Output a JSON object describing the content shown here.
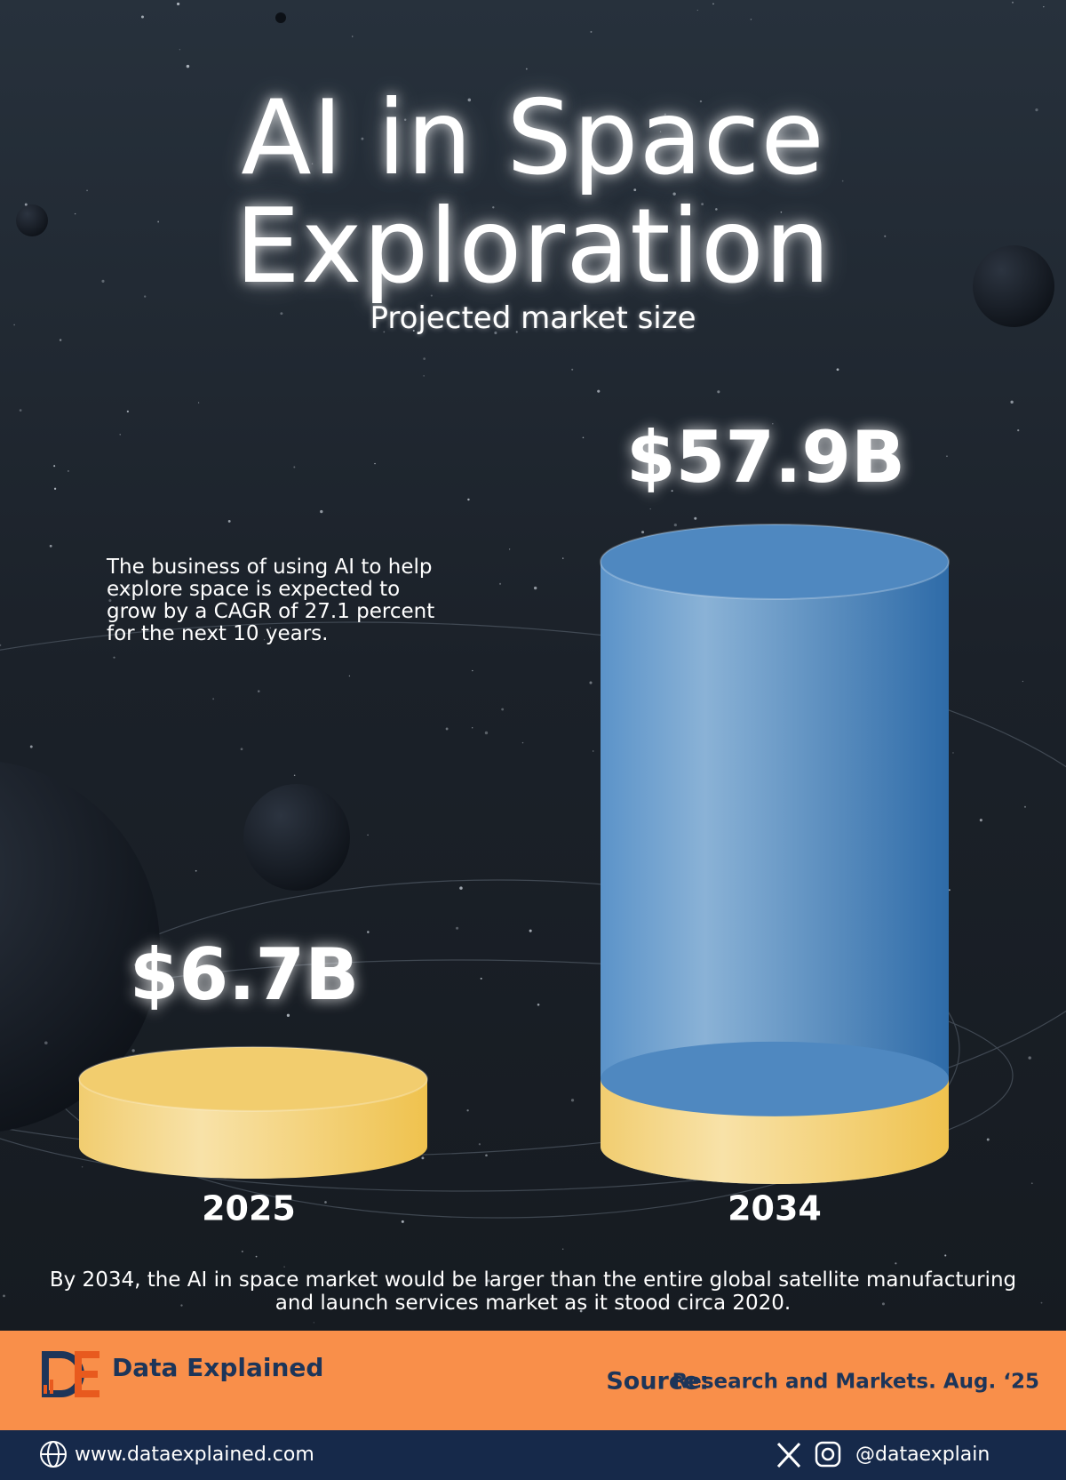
{
  "chart_data": {
    "type": "cylinder",
    "title": "AI in Space Exploration",
    "subtitle": "Projected market size",
    "annotation": "The business of using AI to help explore space is expected to grow by a CAGR of 27.1 percent for the next 10 years.",
    "note": "By 2034, the AI in space market would be larger than the entire global satellite manufacturing and launch services market as it stood circa 2020.",
    "categories": [
      "2025",
      "2034"
    ],
    "values": [
      6.7,
      57.9
    ],
    "value_labels": [
      "$6.7B",
      "$57.9B"
    ],
    "colors": [
      "#f2cd6e",
      "#4f88c0"
    ]
  },
  "footer": {
    "brand": "Data Explained",
    "source_label": "Source:",
    "source": "Research and Markets. Aug. ‘25",
    "website": "www.dataexplained.com",
    "handle": "@dataexplain"
  }
}
